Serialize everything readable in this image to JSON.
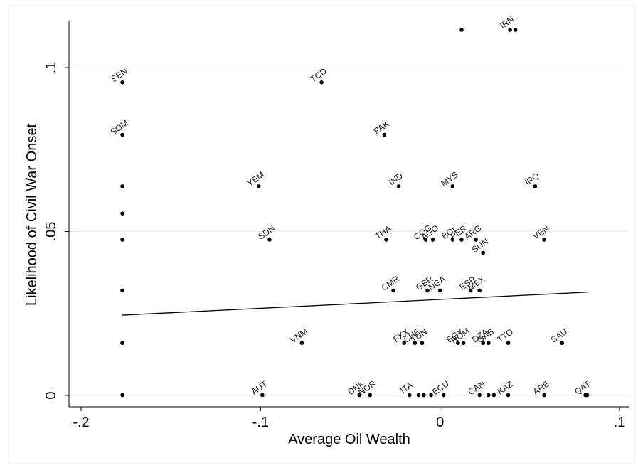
{
  "chart_data": {
    "type": "scatter",
    "xlabel": "Average Oil Wealth",
    "ylabel": "Likelihood of Civil War Onset",
    "xlim": [
      -0.2,
      0.1
    ],
    "ylim": [
      0,
      0.115
    ],
    "xticks": [
      -0.2,
      -0.1,
      0,
      0.1
    ],
    "xtick_labels": [
      "-.2",
      "-.1",
      "0",
      ".1"
    ],
    "yticks": [
      0,
      0.05,
      0.1
    ],
    "ytick_labels": [
      "0",
      ".05",
      ".1"
    ],
    "grid": true,
    "points": [
      {
        "label": "SEN",
        "x": -0.177,
        "y": 0.0955
      },
      {
        "label": "SOM",
        "x": -0.177,
        "y": 0.0795
      },
      {
        "label": "",
        "x": -0.177,
        "y": 0.0638
      },
      {
        "label": "",
        "x": -0.177,
        "y": 0.0555
      },
      {
        "label": "",
        "x": -0.177,
        "y": 0.0475
      },
      {
        "label": "",
        "x": -0.177,
        "y": 0.032
      },
      {
        "label": "",
        "x": -0.177,
        "y": 0.016
      },
      {
        "label": "",
        "x": -0.177,
        "y": 0.0001
      },
      {
        "label": "TCD",
        "x": -0.066,
        "y": 0.0955
      },
      {
        "label": "YEM",
        "x": -0.101,
        "y": 0.0638
      },
      {
        "label": "SDN",
        "x": -0.095,
        "y": 0.0475
      },
      {
        "label": "VNM",
        "x": -0.077,
        "y": 0.016
      },
      {
        "label": "AUT",
        "x": -0.099,
        "y": 0.0001
      },
      {
        "label": "PAK",
        "x": -0.031,
        "y": 0.0795
      },
      {
        "label": "IND",
        "x": -0.023,
        "y": 0.0638
      },
      {
        "label": "MYS",
        "x": 0.007,
        "y": 0.0638
      },
      {
        "label": "IRQ",
        "x": 0.053,
        "y": 0.0638
      },
      {
        "label": "THA",
        "x": -0.03,
        "y": 0.0475
      },
      {
        "label": "COG",
        "x": -0.008,
        "y": 0.0475
      },
      {
        "label": "AGO",
        "x": -0.004,
        "y": 0.0475
      },
      {
        "label": "BOL",
        "x": 0.007,
        "y": 0.0475
      },
      {
        "label": "PER",
        "x": 0.012,
        "y": 0.0475
      },
      {
        "label": "ARG",
        "x": 0.02,
        "y": 0.0475
      },
      {
        "label": "SUN",
        "x": 0.024,
        "y": 0.0435
      },
      {
        "label": "VEN",
        "x": 0.058,
        "y": 0.0475
      },
      {
        "label": "CMR",
        "x": -0.026,
        "y": 0.032
      },
      {
        "label": "GBR",
        "x": -0.007,
        "y": 0.032
      },
      {
        "label": "NGA",
        "x": 0.0,
        "y": 0.032
      },
      {
        "label": "ESP",
        "x": 0.017,
        "y": 0.032
      },
      {
        "label": "MEX",
        "x": 0.022,
        "y": 0.032
      },
      {
        "label": "FXX",
        "x": -0.02,
        "y": 0.016
      },
      {
        "label": "CHE",
        "x": -0.014,
        "y": 0.016
      },
      {
        "label": "TUN",
        "x": -0.01,
        "y": 0.016
      },
      {
        "label": "EGY",
        "x": 0.01,
        "y": 0.016
      },
      {
        "label": "ROM",
        "x": 0.013,
        "y": 0.016
      },
      {
        "label": "DZA",
        "x": 0.024,
        "y": 0.016
      },
      {
        "label": "GAB",
        "x": 0.027,
        "y": 0.016
      },
      {
        "label": "TTO",
        "x": 0.038,
        "y": 0.016
      },
      {
        "label": "SAU",
        "x": 0.068,
        "y": 0.016
      },
      {
        "label": "DNK",
        "x": -0.045,
        "y": 0.0001
      },
      {
        "label": "NOR",
        "x": -0.039,
        "y": 0.0001
      },
      {
        "label": "ITA",
        "x": -0.017,
        "y": 0.0001
      },
      {
        "label": "",
        "x": -0.012,
        "y": 0.0001
      },
      {
        "label": "",
        "x": -0.009,
        "y": 0.0001
      },
      {
        "label": "",
        "x": -0.005,
        "y": 0.0001
      },
      {
        "label": "ECU",
        "x": 0.002,
        "y": 0.0001
      },
      {
        "label": "CAN",
        "x": 0.022,
        "y": 0.0001
      },
      {
        "label": "",
        "x": 0.027,
        "y": 0.0001
      },
      {
        "label": "",
        "x": 0.03,
        "y": 0.0001
      },
      {
        "label": "KAZ",
        "x": 0.038,
        "y": 0.0001
      },
      {
        "label": "ARE",
        "x": 0.058,
        "y": 0.0001
      },
      {
        "label": "QAT",
        "x": 0.081,
        "y": 0.0001
      },
      {
        "label": "",
        "x": 0.082,
        "y": 0.0001
      },
      {
        "label": "",
        "x": 0.012,
        "y": 0.1115
      },
      {
        "label": "IRN",
        "x": 0.039,
        "y": 0.1115
      },
      {
        "label": "",
        "x": 0.042,
        "y": 0.1115
      }
    ],
    "fit_line": {
      "x": [
        -0.177,
        0.082
      ],
      "y": [
        0.0245,
        0.0315
      ]
    }
  }
}
